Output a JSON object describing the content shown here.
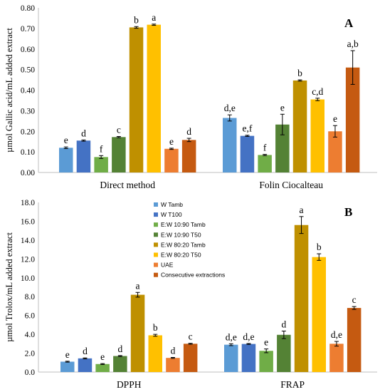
{
  "chart_data": [
    {
      "type": "bar",
      "panel_label": "A",
      "ylabel": "µmol  Gallic acid/mL added extract",
      "ylim": [
        0,
        0.8
      ],
      "yticks": [
        "0.00",
        "0.10",
        "0.20",
        "0.30",
        "0.40",
        "0.50",
        "0.60",
        "0.70",
        "0.80"
      ],
      "categories": [
        "Direct method",
        "Folin Ciocalteau"
      ],
      "series": [
        {
          "name": "W Tamb",
          "color": "#5b9bd5",
          "values": [
            0.12,
            0.265
          ],
          "errors": [
            0.004,
            0.015
          ],
          "letters": [
            "e",
            "d,e"
          ]
        },
        {
          "name": "W T100",
          "color": "#4472c4",
          "values": [
            0.155,
            0.178
          ],
          "errors": [
            0.003,
            0.003
          ],
          "letters": [
            "d",
            "e,f"
          ]
        },
        {
          "name": "E:W 10:90 Tamb",
          "color": "#70ad47",
          "values": [
            0.075,
            0.085
          ],
          "errors": [
            0.007,
            0.003
          ],
          "letters": [
            "f",
            "f"
          ]
        },
        {
          "name": "E:W 10:90 T50",
          "color": "#548235",
          "values": [
            0.172,
            0.233
          ],
          "errors": [
            0.003,
            0.05
          ],
          "letters": [
            "c",
            "e"
          ]
        },
        {
          "name": "E:W 80:20 Tamb",
          "color": "#bf9000",
          "values": [
            0.705,
            0.447
          ],
          "errors": [
            0.004,
            0.003
          ],
          "letters": [
            "b",
            "b"
          ]
        },
        {
          "name": "E:W 80:20 T50",
          "color": "#ffc000",
          "values": [
            0.718,
            0.355
          ],
          "errors": [
            0.003,
            0.006
          ],
          "letters": [
            "a",
            "c,d"
          ]
        },
        {
          "name": "UAE",
          "color": "#ed7d31",
          "values": [
            0.115,
            0.2
          ],
          "errors": [
            0.003,
            0.028
          ],
          "letters": [
            "e",
            "e"
          ]
        },
        {
          "name": "Consecutive extractions",
          "color": "#c55a11",
          "values": [
            0.158,
            0.51
          ],
          "errors": [
            0.008,
            0.082
          ],
          "letters": [
            "d",
            "a,b"
          ]
        }
      ]
    },
    {
      "type": "bar",
      "panel_label": "B",
      "ylabel": "µmol Trolox/mL added extract",
      "ylim": [
        0,
        18
      ],
      "yticks": [
        "0.0",
        "2.0",
        "4.0",
        "6.0",
        "8.0",
        "10.0",
        "12.0",
        "14.0",
        "16.0",
        "18.0"
      ],
      "categories": [
        "DPPH",
        "FRAP"
      ],
      "series": [
        {
          "name": "W Tamb",
          "color": "#5b9bd5",
          "values": [
            1.1,
            2.9
          ],
          "errors": [
            0.05,
            0.1
          ],
          "letters": [
            "e",
            "d,e"
          ]
        },
        {
          "name": "W T100",
          "color": "#4472c4",
          "values": [
            1.45,
            2.98
          ],
          "errors": [
            0.05,
            0.05
          ],
          "letters": [
            "d",
            "d,e"
          ]
        },
        {
          "name": "E:W 10:90 Tamb",
          "color": "#70ad47",
          "values": [
            0.85,
            2.25
          ],
          "errors": [
            0.05,
            0.2
          ],
          "letters": [
            "e",
            "e"
          ]
        },
        {
          "name": "E:W 10:90 T50",
          "color": "#548235",
          "values": [
            1.7,
            3.95
          ],
          "errors": [
            0.05,
            0.4
          ],
          "letters": [
            "d",
            "d"
          ]
        },
        {
          "name": "E:W 80:20 Tamb",
          "color": "#bf9000",
          "values": [
            8.2,
            15.6
          ],
          "errors": [
            0.25,
            0.9
          ],
          "letters": [
            "a",
            "a"
          ]
        },
        {
          "name": "E:W 80:20 T50",
          "color": "#ffc000",
          "values": [
            3.9,
            12.2
          ],
          "errors": [
            0.1,
            0.35
          ],
          "letters": [
            "b",
            "b"
          ]
        },
        {
          "name": "UAE",
          "color": "#ed7d31",
          "values": [
            1.5,
            3.0
          ],
          "errors": [
            0.05,
            0.25
          ],
          "letters": [
            "d",
            "d,e"
          ]
        },
        {
          "name": "Consecutive extractions",
          "color": "#c55a11",
          "values": [
            3.0,
            6.8
          ],
          "errors": [
            0.05,
            0.15
          ],
          "letters": [
            "c",
            "c"
          ]
        }
      ]
    }
  ],
  "legend": {
    "placement": "center",
    "entries": [
      "W Tamb",
      "W T100",
      "E:W 10:90 Tamb",
      "E:W 10:90 T50",
      "E:W 80:20 Tamb",
      "E:W 80:20 T50",
      "UAE",
      "Consecutive extractions"
    ]
  }
}
